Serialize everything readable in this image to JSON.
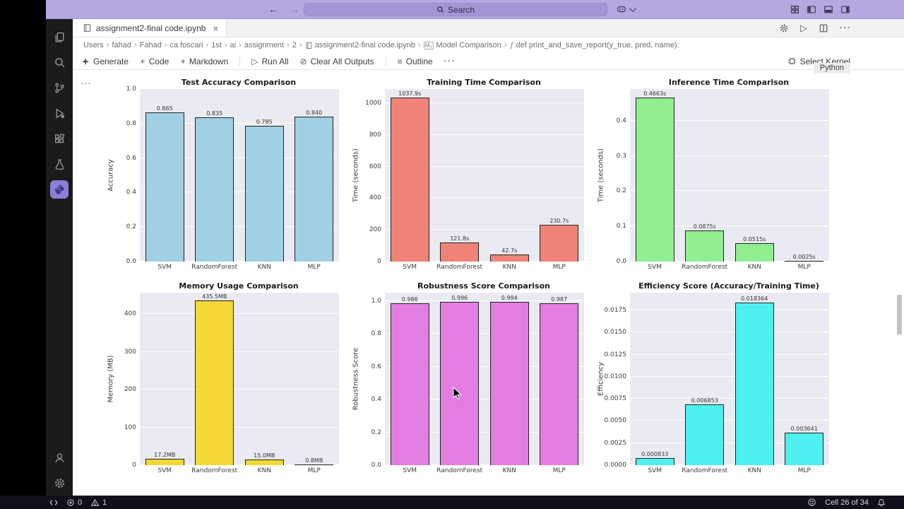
{
  "titlebar": {
    "search_label": "Search"
  },
  "editor_tab": {
    "title": "assignment2-final code.ipynb",
    "close": "×"
  },
  "breadcrumbs": [
    {
      "label": "Users"
    },
    {
      "label": "fahad"
    },
    {
      "label": "Fahad"
    },
    {
      "label": "ca foscari"
    },
    {
      "label": "1st"
    },
    {
      "label": "ai"
    },
    {
      "label": "assignment"
    },
    {
      "label": "2"
    },
    {
      "label": "assignment2-final code.ipynb",
      "icon": "notebook"
    },
    {
      "label": "Model Comparison",
      "icon": "markdown"
    },
    {
      "label": "def print_and_save_report(y_true, pred, name):",
      "icon": "symbol-method"
    }
  ],
  "notebook_toolbar": {
    "generate": "Generate",
    "add_code": "Code",
    "add_markdown": "Markdown",
    "run_all": "Run All",
    "clear_outputs": "Clear All Outputs",
    "outline": "Outline",
    "select_kernel": "Select Kernel",
    "kernel": "Python"
  },
  "statusbar": {
    "errors": "0",
    "warnings": "1",
    "cell_indicator": "Cell 26 of 34"
  },
  "theme": {
    "titlebar_bg": "#b5a7e0",
    "plot_bg": "#eaeaf2",
    "statusbar_bg": "#10101c"
  },
  "chart_data": [
    {
      "type": "bar",
      "title": "Test Accuracy Comparison",
      "ylabel": "Accuracy",
      "categories": [
        "SVM",
        "RandomForest",
        "KNN",
        "MLP"
      ],
      "values": [
        0.865,
        0.835,
        0.785,
        0.84
      ],
      "value_labels": [
        "0.865",
        "0.835",
        "0.785",
        "0.840"
      ],
      "ylim": [
        0,
        1.0
      ],
      "yticks": [
        0,
        0.2,
        0.4,
        0.6,
        0.8,
        1.0
      ],
      "ytick_labels": [
        "0.0",
        "0.2",
        "0.4",
        "0.6",
        "0.8",
        "1.0"
      ],
      "grid": true,
      "color": "#9fd0e4"
    },
    {
      "type": "bar",
      "title": "Training Time Comparison",
      "ylabel": "Time (seconds)",
      "categories": [
        "SVM",
        "RandomForest",
        "KNN",
        "MLP"
      ],
      "values": [
        1037.9,
        121.8,
        42.7,
        230.7
      ],
      "value_labels": [
        "1037.9s",
        "121.8s",
        "42.7s",
        "230.7s"
      ],
      "ylim": [
        0,
        1090
      ],
      "yticks": [
        0,
        200,
        400,
        600,
        800,
        1000
      ],
      "ytick_labels": [
        "0",
        "200",
        "400",
        "600",
        "800",
        "1000"
      ],
      "grid": true,
      "color": "#ef8377"
    },
    {
      "type": "bar",
      "title": "Inference Time Comparison",
      "ylabel": "Time (seconds)",
      "categories": [
        "SVM",
        "RandomForest",
        "KNN",
        "MLP"
      ],
      "values": [
        0.4663,
        0.0875,
        0.0515,
        0.0025
      ],
      "value_labels": [
        "0.4663s",
        "0.0875s",
        "0.0515s",
        "0.0025s"
      ],
      "ylim": [
        0,
        0.49
      ],
      "yticks": [
        0,
        0.1,
        0.2,
        0.3,
        0.4
      ],
      "ytick_labels": [
        "0.0",
        "0.1",
        "0.2",
        "0.3",
        "0.4"
      ],
      "grid": true,
      "color": "#90ee90"
    },
    {
      "type": "bar",
      "title": "Memory Usage Comparison",
      "ylabel": "Memory (MB)",
      "categories": [
        "SVM",
        "RandomForest",
        "KNN",
        "MLP"
      ],
      "values": [
        17.2,
        435.5,
        15.0,
        0.8
      ],
      "value_labels": [
        "17.2MB",
        "435.5MB",
        "15.0MB",
        "0.8MB"
      ],
      "ylim": [
        0,
        457
      ],
      "yticks": [
        0,
        100,
        200,
        300,
        400
      ],
      "ytick_labels": [
        "0",
        "100",
        "200",
        "300",
        "400"
      ],
      "grid": true,
      "color": "#f3d838"
    },
    {
      "type": "bar",
      "title": "Robustness Score Comparison",
      "ylabel": "Robustness Score",
      "categories": [
        "SVM",
        "RandomForest",
        "KNN",
        "MLP"
      ],
      "values": [
        0.986,
        0.996,
        0.994,
        0.987
      ],
      "value_labels": [
        "0.986",
        "0.996",
        "0.994",
        "0.987"
      ],
      "ylim": [
        0,
        1.05
      ],
      "yticks": [
        0,
        0.2,
        0.4,
        0.6,
        0.8,
        1.0
      ],
      "ytick_labels": [
        "0.0",
        "0.2",
        "0.4",
        "0.6",
        "0.8",
        "1.0"
      ],
      "grid": true,
      "color": "#e27ee2"
    },
    {
      "type": "bar",
      "title": "Efficiency Score (Accuracy/Training Time)",
      "ylabel": "Efficiency",
      "categories": [
        "SVM",
        "RandomForest",
        "KNN",
        "MLP"
      ],
      "values": [
        0.000833,
        0.006853,
        0.018364,
        0.003641
      ],
      "value_labels": [
        "0.000833",
        "0.006853",
        "0.018364",
        "0.003641"
      ],
      "ylim": [
        0,
        0.0195
      ],
      "yticks": [
        0,
        0.0025,
        0.005,
        0.0075,
        0.01,
        0.0125,
        0.015,
        0.0175
      ],
      "ytick_labels": [
        "0.0000",
        "0.0025",
        "0.0050",
        "0.0075",
        "0.0100",
        "0.0125",
        "0.0150",
        "0.0175"
      ],
      "grid": true,
      "color": "#4ff0f0"
    }
  ]
}
